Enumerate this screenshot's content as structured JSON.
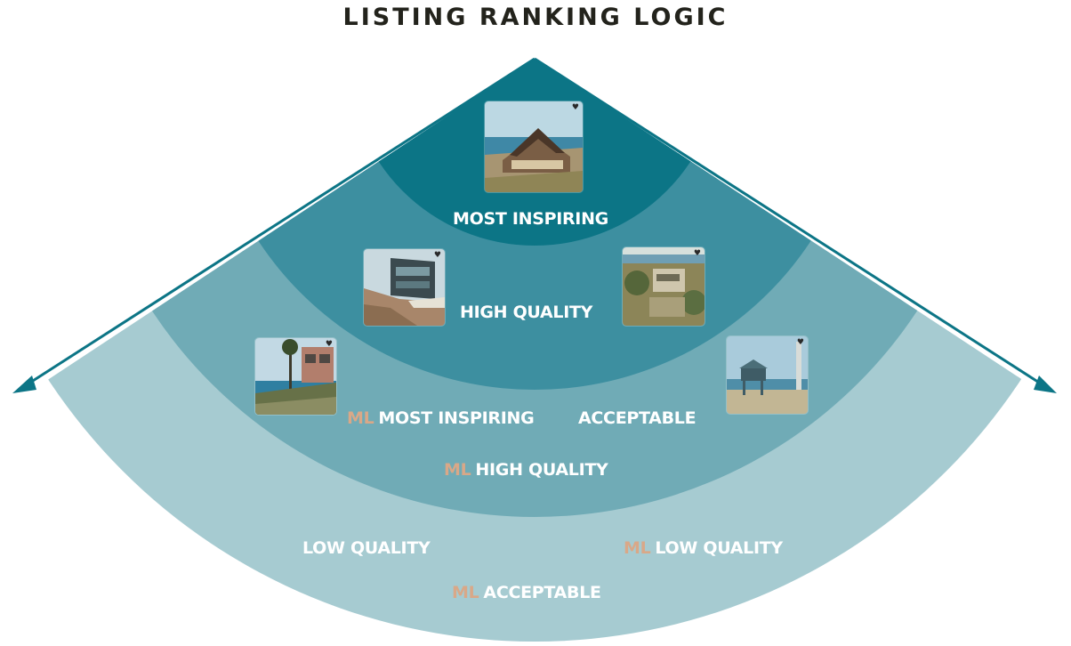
{
  "title": "LISTING RANKING LOGIC",
  "colors": {
    "tier1": "#0c7586",
    "tier2": "#3d8fa0",
    "tier3": "#70abb6",
    "tier4": "#a6cbd1",
    "ml_prefix": "#d9a888",
    "arrow": "#0c7586"
  },
  "ml_prefix": "ML",
  "tiers": [
    {
      "label": "MOST INSPIRING"
    },
    {
      "label": "HIGH QUALITY"
    },
    {
      "label": "MOST INSPIRING",
      "ml": true
    },
    {
      "label": "ACCEPTABLE"
    },
    {
      "label": "HIGH QUALITY",
      "ml": true
    },
    {
      "label": "LOW QUALITY"
    },
    {
      "label": "LOW QUALITY",
      "ml": true
    },
    {
      "label": "ACCEPTABLE",
      "ml": true
    }
  ],
  "photos": [
    {
      "name": "listing-photo-coastal-lodge",
      "heart": "♥"
    },
    {
      "name": "listing-photo-modern-cliff-house",
      "heart": "♥"
    },
    {
      "name": "listing-photo-oceanview-estate",
      "heart": "♥"
    },
    {
      "name": "listing-photo-palm-cliff-house",
      "heart": "♥"
    },
    {
      "name": "listing-photo-beach-lifeguard-tower",
      "heart": "♥"
    }
  ]
}
